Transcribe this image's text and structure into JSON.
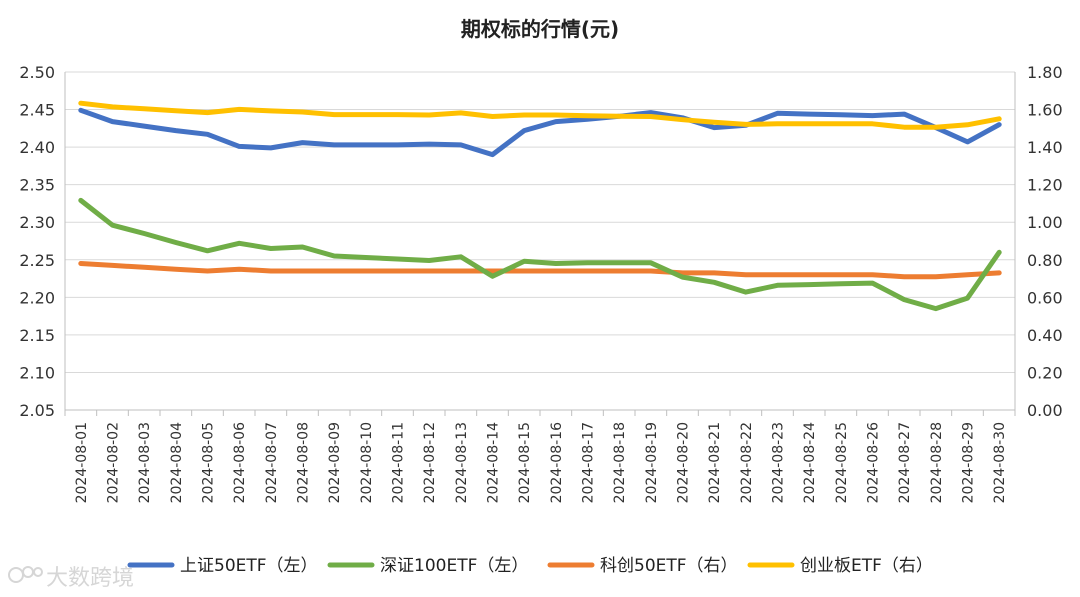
{
  "chart_data": {
    "type": "line",
    "title": "期权标的行情(元)",
    "x": [
      "2024-08-01",
      "2024-08-02",
      "2024-08-03",
      "2024-08-04",
      "2024-08-05",
      "2024-08-06",
      "2024-08-07",
      "2024-08-08",
      "2024-08-09",
      "2024-08-10",
      "2024-08-11",
      "2024-08-12",
      "2024-08-13",
      "2024-08-14",
      "2024-08-15",
      "2024-08-16",
      "2024-08-17",
      "2024-08-18",
      "2024-08-19",
      "2024-08-20",
      "2024-08-21",
      "2024-08-22",
      "2024-08-23",
      "2024-08-24",
      "2024-08-25",
      "2024-08-26",
      "2024-08-27",
      "2024-08-28",
      "2024-08-29",
      "2024-08-30"
    ],
    "y_left": {
      "min": 2.05,
      "max": 2.5,
      "step": 0.05,
      "ticks": [
        "2.05",
        "2.10",
        "2.15",
        "2.20",
        "2.25",
        "2.30",
        "2.35",
        "2.40",
        "2.45",
        "2.50"
      ]
    },
    "y_right": {
      "min": 0.0,
      "max": 1.8,
      "step": 0.2,
      "ticks": [
        "0.00",
        "0.20",
        "0.40",
        "0.60",
        "0.80",
        "1.00",
        "1.20",
        "1.40",
        "1.60",
        "1.80"
      ]
    },
    "grid": true,
    "legend_position": "bottom",
    "series": [
      {
        "name": "上证50ETF（左）",
        "axis": "left",
        "color": "#4472C4",
        "values": [
          2.449,
          2.434,
          2.428,
          2.422,
          2.417,
          2.401,
          2.399,
          2.406,
          2.403,
          2.403,
          2.403,
          2.404,
          2.403,
          2.39,
          2.422,
          2.434,
          2.437,
          2.441,
          2.446,
          2.439,
          2.426,
          2.429,
          2.445,
          2.444,
          2.443,
          2.442,
          2.444,
          2.426,
          2.407,
          2.43
        ]
      },
      {
        "name": "深证100ETF（左）",
        "axis": "left",
        "color": "#70AD47",
        "values": [
          2.329,
          2.296,
          2.285,
          2.273,
          2.262,
          2.272,
          2.265,
          2.267,
          2.255,
          2.253,
          2.251,
          2.249,
          2.254,
          2.228,
          2.248,
          2.245,
          2.246,
          2.246,
          2.246,
          2.227,
          2.22,
          2.207,
          2.216,
          2.217,
          2.218,
          2.219,
          2.197,
          2.185,
          2.199,
          2.26
        ]
      },
      {
        "name": "科创50ETF（右）",
        "axis": "right",
        "color": "#ED7D31",
        "values": [
          0.78,
          0.77,
          0.76,
          0.75,
          0.74,
          0.75,
          0.74,
          0.74,
          0.74,
          0.74,
          0.74,
          0.74,
          0.74,
          0.74,
          0.74,
          0.74,
          0.74,
          0.74,
          0.74,
          0.73,
          0.73,
          0.72,
          0.72,
          0.72,
          0.72,
          0.72,
          0.71,
          0.71,
          0.72,
          0.73
        ]
      },
      {
        "name": "创业板ETF（右）",
        "axis": "right",
        "color": "#FFC000",
        "values": [
          1.634,
          1.614,
          1.604,
          1.594,
          1.584,
          1.601,
          1.593,
          1.587,
          1.573,
          1.573,
          1.573,
          1.571,
          1.582,
          1.563,
          1.571,
          1.571,
          1.567,
          1.564,
          1.563,
          1.546,
          1.532,
          1.521,
          1.524,
          1.524,
          1.524,
          1.524,
          1.506,
          1.506,
          1.519,
          1.551
        ]
      }
    ]
  },
  "watermark": {
    "text": "大数跨境"
  }
}
